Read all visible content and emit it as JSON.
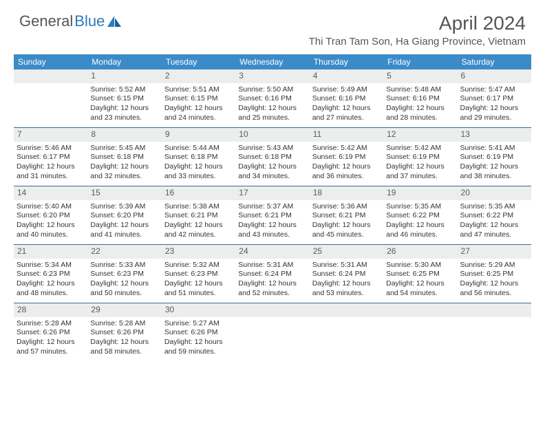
{
  "logo": {
    "part1": "General",
    "part2": "Blue"
  },
  "title": "April 2024",
  "location": "Thi Tran Tam Son, Ha Giang Province, Vietnam",
  "colors": {
    "header_bg": "#3b8bc9",
    "header_text": "#ffffff",
    "daynum_bg": "#eceded",
    "daynum_text": "#5a5a5a",
    "border": "#3b6a94",
    "logo_blue": "#2b7bbf",
    "title_color": "#555555"
  },
  "weekdays": [
    "Sunday",
    "Monday",
    "Tuesday",
    "Wednesday",
    "Thursday",
    "Friday",
    "Saturday"
  ],
  "weeks": [
    [
      {
        "n": "",
        "sr": "",
        "ss": "",
        "dl": ""
      },
      {
        "n": "1",
        "sr": "Sunrise: 5:52 AM",
        "ss": "Sunset: 6:15 PM",
        "dl": "Daylight: 12 hours and 23 minutes."
      },
      {
        "n": "2",
        "sr": "Sunrise: 5:51 AM",
        "ss": "Sunset: 6:15 PM",
        "dl": "Daylight: 12 hours and 24 minutes."
      },
      {
        "n": "3",
        "sr": "Sunrise: 5:50 AM",
        "ss": "Sunset: 6:16 PM",
        "dl": "Daylight: 12 hours and 25 minutes."
      },
      {
        "n": "4",
        "sr": "Sunrise: 5:49 AM",
        "ss": "Sunset: 6:16 PM",
        "dl": "Daylight: 12 hours and 27 minutes."
      },
      {
        "n": "5",
        "sr": "Sunrise: 5:48 AM",
        "ss": "Sunset: 6:16 PM",
        "dl": "Daylight: 12 hours and 28 minutes."
      },
      {
        "n": "6",
        "sr": "Sunrise: 5:47 AM",
        "ss": "Sunset: 6:17 PM",
        "dl": "Daylight: 12 hours and 29 minutes."
      }
    ],
    [
      {
        "n": "7",
        "sr": "Sunrise: 5:46 AM",
        "ss": "Sunset: 6:17 PM",
        "dl": "Daylight: 12 hours and 31 minutes."
      },
      {
        "n": "8",
        "sr": "Sunrise: 5:45 AM",
        "ss": "Sunset: 6:18 PM",
        "dl": "Daylight: 12 hours and 32 minutes."
      },
      {
        "n": "9",
        "sr": "Sunrise: 5:44 AM",
        "ss": "Sunset: 6:18 PM",
        "dl": "Daylight: 12 hours and 33 minutes."
      },
      {
        "n": "10",
        "sr": "Sunrise: 5:43 AM",
        "ss": "Sunset: 6:18 PM",
        "dl": "Daylight: 12 hours and 34 minutes."
      },
      {
        "n": "11",
        "sr": "Sunrise: 5:42 AM",
        "ss": "Sunset: 6:19 PM",
        "dl": "Daylight: 12 hours and 36 minutes."
      },
      {
        "n": "12",
        "sr": "Sunrise: 5:42 AM",
        "ss": "Sunset: 6:19 PM",
        "dl": "Daylight: 12 hours and 37 minutes."
      },
      {
        "n": "13",
        "sr": "Sunrise: 5:41 AM",
        "ss": "Sunset: 6:19 PM",
        "dl": "Daylight: 12 hours and 38 minutes."
      }
    ],
    [
      {
        "n": "14",
        "sr": "Sunrise: 5:40 AM",
        "ss": "Sunset: 6:20 PM",
        "dl": "Daylight: 12 hours and 40 minutes."
      },
      {
        "n": "15",
        "sr": "Sunrise: 5:39 AM",
        "ss": "Sunset: 6:20 PM",
        "dl": "Daylight: 12 hours and 41 minutes."
      },
      {
        "n": "16",
        "sr": "Sunrise: 5:38 AM",
        "ss": "Sunset: 6:21 PM",
        "dl": "Daylight: 12 hours and 42 minutes."
      },
      {
        "n": "17",
        "sr": "Sunrise: 5:37 AM",
        "ss": "Sunset: 6:21 PM",
        "dl": "Daylight: 12 hours and 43 minutes."
      },
      {
        "n": "18",
        "sr": "Sunrise: 5:36 AM",
        "ss": "Sunset: 6:21 PM",
        "dl": "Daylight: 12 hours and 45 minutes."
      },
      {
        "n": "19",
        "sr": "Sunrise: 5:35 AM",
        "ss": "Sunset: 6:22 PM",
        "dl": "Daylight: 12 hours and 46 minutes."
      },
      {
        "n": "20",
        "sr": "Sunrise: 5:35 AM",
        "ss": "Sunset: 6:22 PM",
        "dl": "Daylight: 12 hours and 47 minutes."
      }
    ],
    [
      {
        "n": "21",
        "sr": "Sunrise: 5:34 AM",
        "ss": "Sunset: 6:23 PM",
        "dl": "Daylight: 12 hours and 48 minutes."
      },
      {
        "n": "22",
        "sr": "Sunrise: 5:33 AM",
        "ss": "Sunset: 6:23 PM",
        "dl": "Daylight: 12 hours and 50 minutes."
      },
      {
        "n": "23",
        "sr": "Sunrise: 5:32 AM",
        "ss": "Sunset: 6:23 PM",
        "dl": "Daylight: 12 hours and 51 minutes."
      },
      {
        "n": "24",
        "sr": "Sunrise: 5:31 AM",
        "ss": "Sunset: 6:24 PM",
        "dl": "Daylight: 12 hours and 52 minutes."
      },
      {
        "n": "25",
        "sr": "Sunrise: 5:31 AM",
        "ss": "Sunset: 6:24 PM",
        "dl": "Daylight: 12 hours and 53 minutes."
      },
      {
        "n": "26",
        "sr": "Sunrise: 5:30 AM",
        "ss": "Sunset: 6:25 PM",
        "dl": "Daylight: 12 hours and 54 minutes."
      },
      {
        "n": "27",
        "sr": "Sunrise: 5:29 AM",
        "ss": "Sunset: 6:25 PM",
        "dl": "Daylight: 12 hours and 56 minutes."
      }
    ],
    [
      {
        "n": "28",
        "sr": "Sunrise: 5:28 AM",
        "ss": "Sunset: 6:26 PM",
        "dl": "Daylight: 12 hours and 57 minutes."
      },
      {
        "n": "29",
        "sr": "Sunrise: 5:28 AM",
        "ss": "Sunset: 6:26 PM",
        "dl": "Daylight: 12 hours and 58 minutes."
      },
      {
        "n": "30",
        "sr": "Sunrise: 5:27 AM",
        "ss": "Sunset: 6:26 PM",
        "dl": "Daylight: 12 hours and 59 minutes."
      },
      {
        "n": "",
        "sr": "",
        "ss": "",
        "dl": ""
      },
      {
        "n": "",
        "sr": "",
        "ss": "",
        "dl": ""
      },
      {
        "n": "",
        "sr": "",
        "ss": "",
        "dl": ""
      },
      {
        "n": "",
        "sr": "",
        "ss": "",
        "dl": ""
      }
    ]
  ]
}
